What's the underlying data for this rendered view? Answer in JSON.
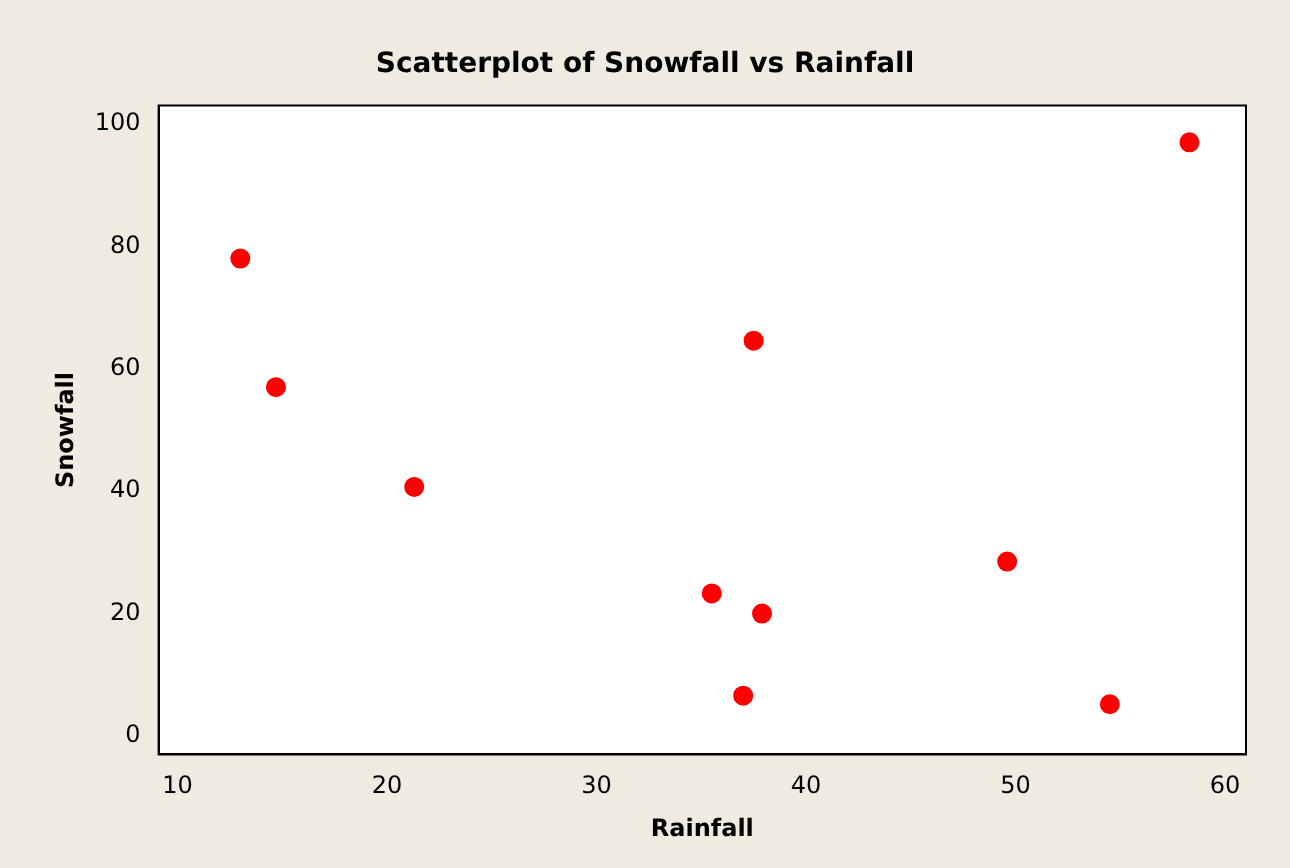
{
  "chart_data": {
    "type": "scatter",
    "title": "Scatterplot of Snowfall vs Rainfall",
    "xlabel": "Rainfall",
    "ylabel": "Snowfall",
    "x": [
      13.0,
      14.7,
      21.3,
      35.5,
      37.5,
      37.9,
      37.0,
      49.6,
      54.5,
      58.3
    ],
    "values": [
      78,
      57,
      40.7,
      23.3,
      64.6,
      20,
      6.6,
      28.5,
      5.2,
      97
    ],
    "color": "#ff0000",
    "marker": "circle",
    "xlim": [
      9.1,
      61
    ],
    "xticks": [
      10,
      20,
      30,
      40,
      50,
      60
    ],
    "ylim": [
      -3,
      103
    ],
    "yticks": [
      0,
      20,
      40,
      60,
      80,
      100
    ],
    "grid": false,
    "legend": false
  }
}
